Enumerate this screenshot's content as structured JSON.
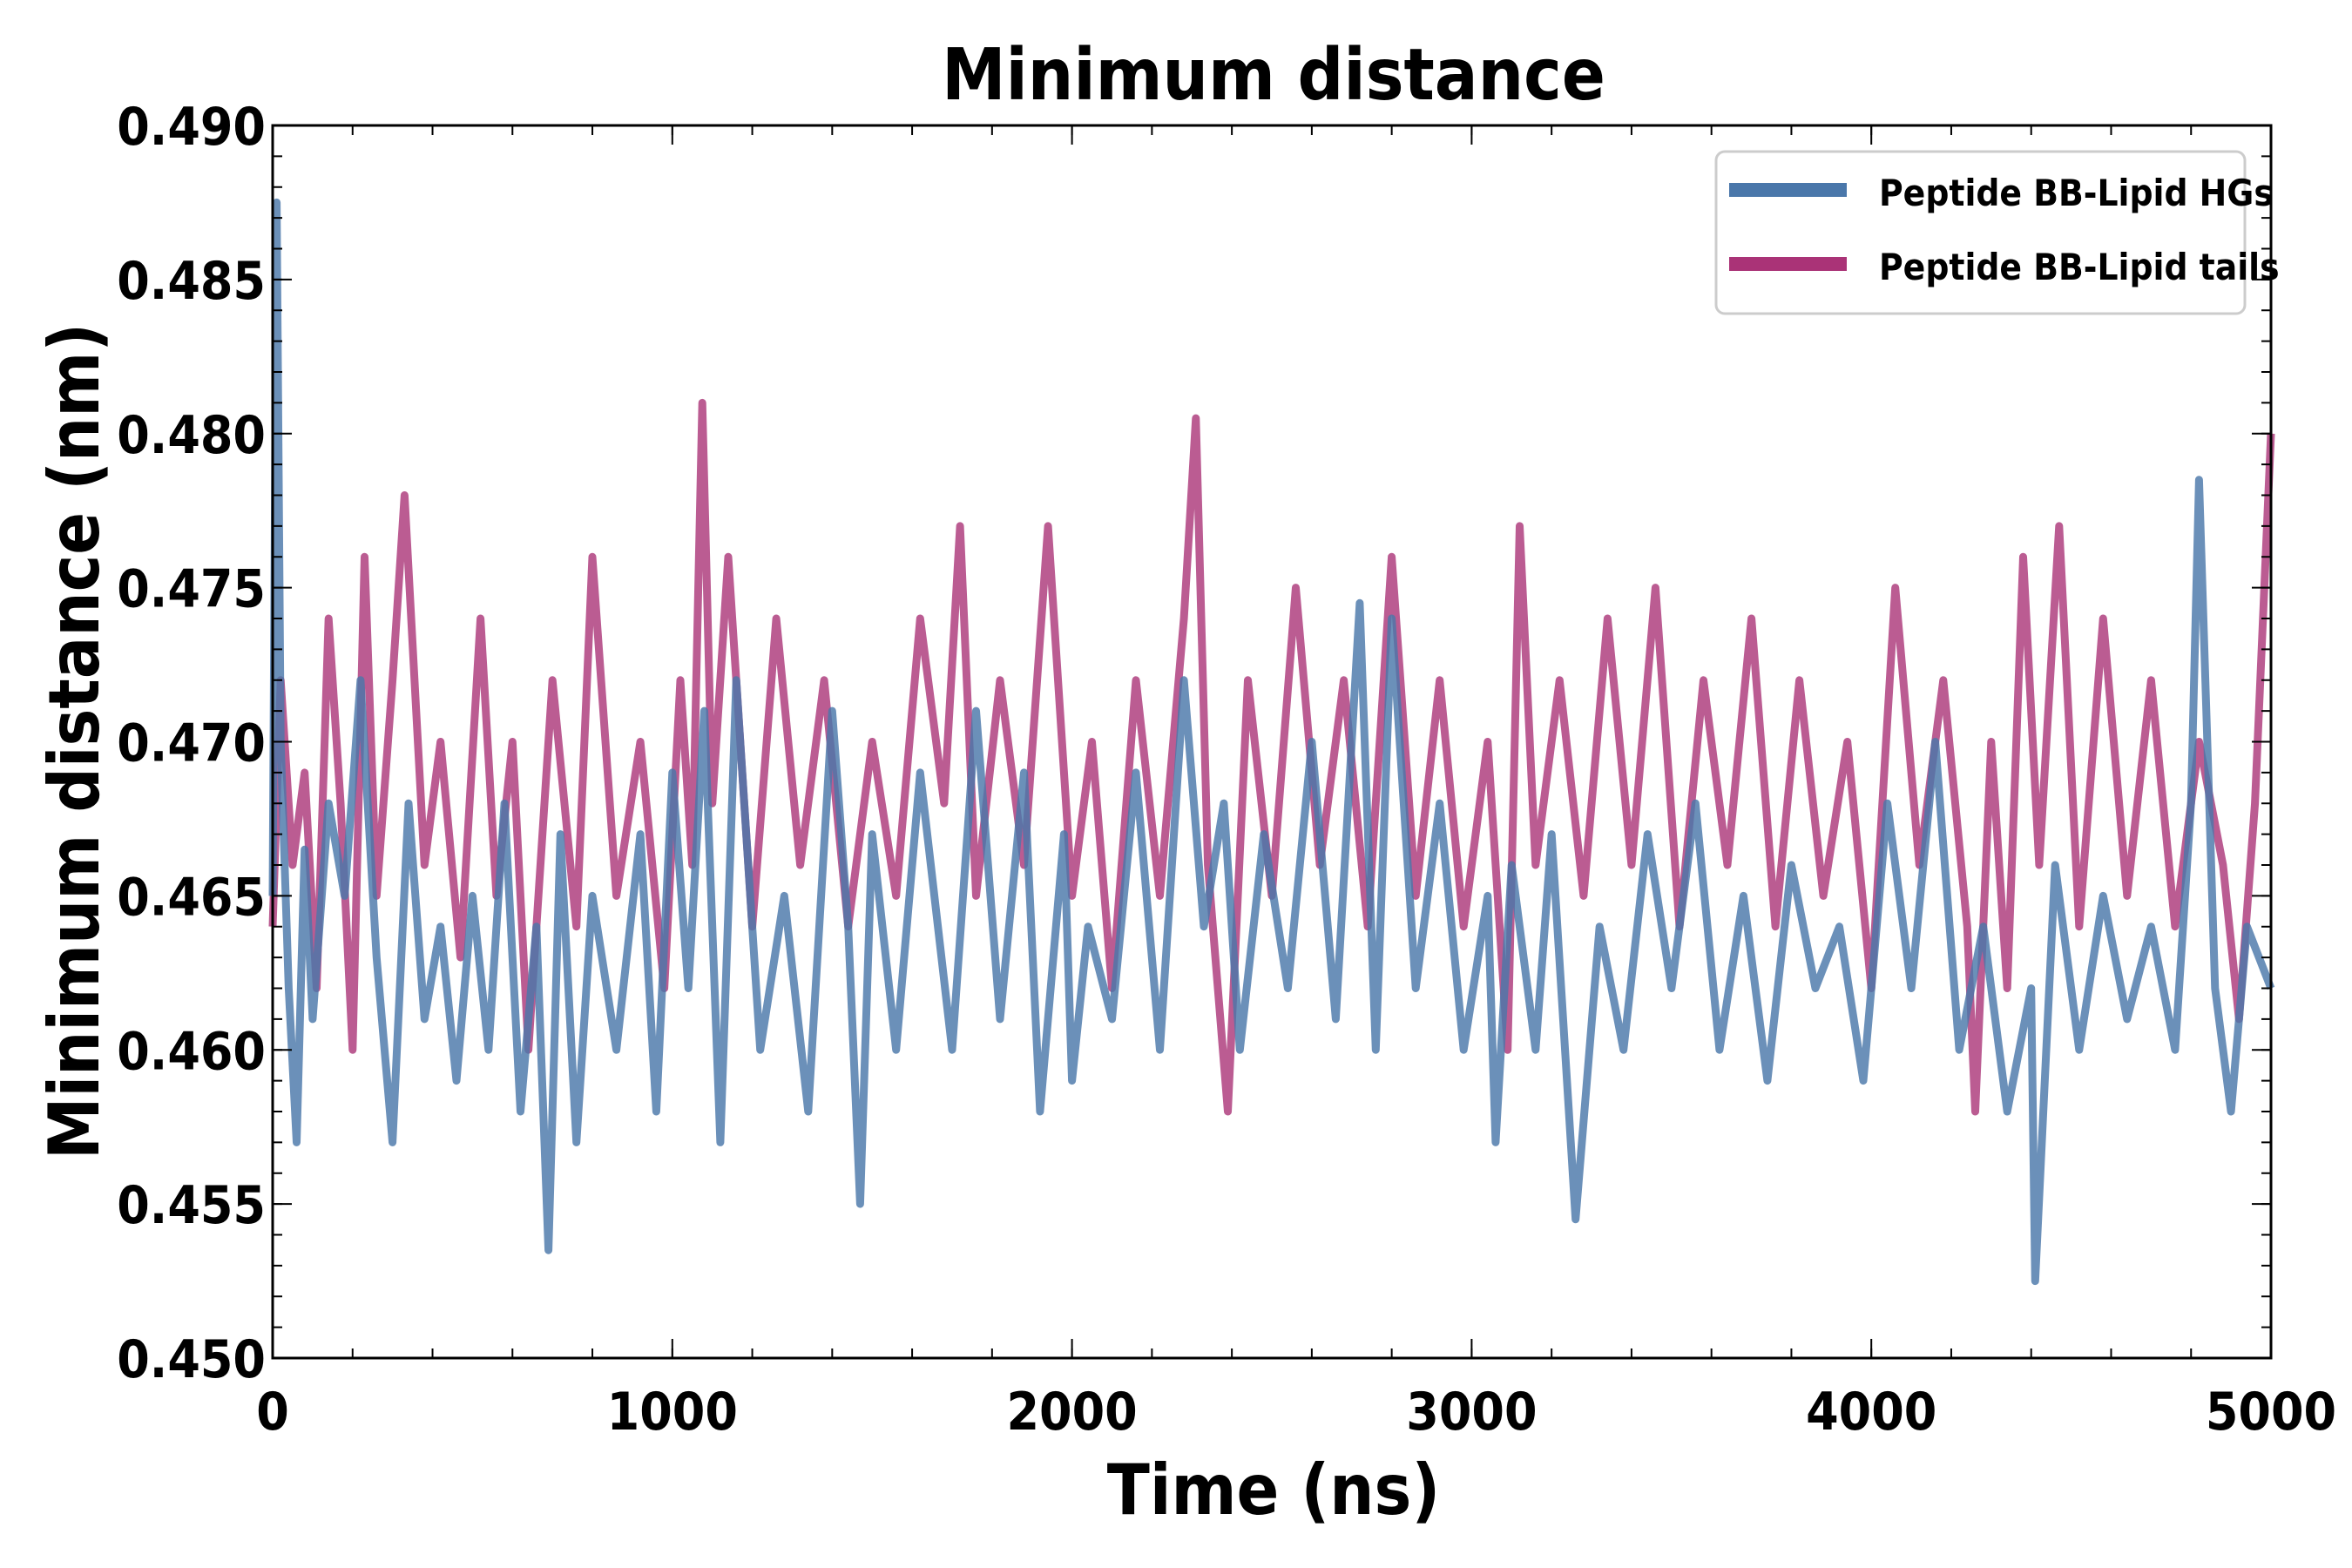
{
  "chart_data": {
    "type": "line",
    "title": "Minimum distance",
    "xlabel": "Time (ns)",
    "ylabel": "Minimum distance (nm)",
    "xlim": [
      0,
      5000
    ],
    "ylim": [
      0.45,
      0.49
    ],
    "xticks": [
      "0",
      "1000",
      "2000",
      "3000",
      "4000",
      "5000"
    ],
    "yticks": [
      "0.450",
      "0.455",
      "0.460",
      "0.465",
      "0.470",
      "0.475",
      "0.480",
      "0.485",
      "0.490"
    ],
    "grid": false,
    "legend_position": "top-right",
    "series": [
      {
        "name": "Peptide BB-Lipid HGs",
        "color": "#4a77aa",
        "style": "noisy fluctuation around 0.4637 nm, spike to 0.4875 nm at t=0",
        "x": [
          0,
          10,
          20,
          40,
          60,
          80,
          100,
          140,
          180,
          220,
          260,
          300,
          340,
          380,
          420,
          460,
          500,
          540,
          580,
          620,
          660,
          690,
          720,
          760,
          800,
          860,
          920,
          960,
          1000,
          1040,
          1080,
          1120,
          1160,
          1220,
          1280,
          1340,
          1400,
          1440,
          1470,
          1500,
          1560,
          1620,
          1700,
          1760,
          1820,
          1880,
          1920,
          1980,
          2000,
          2040,
          2100,
          2160,
          2220,
          2280,
          2330,
          2380,
          2420,
          2480,
          2540,
          2600,
          2660,
          2720,
          2760,
          2800,
          2860,
          2920,
          2980,
          3040,
          3060,
          3100,
          3160,
          3200,
          3260,
          3320,
          3380,
          3440,
          3500,
          3560,
          3620,
          3680,
          3740,
          3800,
          3860,
          3920,
          3980,
          4040,
          4100,
          4160,
          4220,
          4280,
          4340,
          4400,
          4410,
          4460,
          4520,
          4580,
          4640,
          4700,
          4760,
          4800,
          4820,
          4860,
          4900,
          4940,
          5000
        ],
        "values": [
          0.465,
          0.4875,
          0.47,
          0.462,
          0.457,
          0.4665,
          0.461,
          0.468,
          0.465,
          0.472,
          0.463,
          0.457,
          0.468,
          0.461,
          0.464,
          0.459,
          0.465,
          0.46,
          0.468,
          0.458,
          0.464,
          0.4535,
          0.467,
          0.457,
          0.465,
          0.46,
          0.467,
          0.458,
          0.469,
          0.462,
          0.471,
          0.457,
          0.472,
          0.46,
          0.465,
          0.458,
          0.471,
          0.464,
          0.455,
          0.467,
          0.46,
          0.469,
          0.46,
          0.471,
          0.461,
          0.469,
          0.458,
          0.467,
          0.459,
          0.464,
          0.461,
          0.469,
          0.46,
          0.472,
          0.464,
          0.468,
          0.46,
          0.467,
          0.462,
          0.47,
          0.461,
          0.4745,
          0.46,
          0.474,
          0.462,
          0.468,
          0.46,
          0.465,
          0.457,
          0.466,
          0.46,
          0.467,
          0.4545,
          0.464,
          0.46,
          0.467,
          0.462,
          0.468,
          0.46,
          0.465,
          0.459,
          0.466,
          0.462,
          0.464,
          0.459,
          0.468,
          0.462,
          0.47,
          0.46,
          0.464,
          0.458,
          0.462,
          0.4525,
          0.466,
          0.46,
          0.465,
          0.461,
          0.464,
          0.46,
          0.468,
          0.4785,
          0.462,
          0.458,
          0.464,
          0.462
        ]
      },
      {
        "name": "Peptide BB-Lipid tails",
        "color": "#aa3377",
        "style": "noisy fluctuation around 0.4680 nm",
        "x": [
          0,
          20,
          50,
          80,
          110,
          140,
          170,
          200,
          230,
          260,
          300,
          330,
          380,
          420,
          470,
          520,
          560,
          600,
          640,
          700,
          760,
          800,
          860,
          920,
          980,
          1020,
          1050,
          1075,
          1100,
          1140,
          1200,
          1260,
          1320,
          1380,
          1440,
          1500,
          1560,
          1620,
          1680,
          1720,
          1760,
          1820,
          1880,
          1940,
          2000,
          2050,
          2100,
          2160,
          2220,
          2280,
          2310,
          2340,
          2390,
          2440,
          2500,
          2560,
          2620,
          2680,
          2740,
          2800,
          2860,
          2920,
          2980,
          3040,
          3090,
          3120,
          3160,
          3220,
          3280,
          3340,
          3400,
          3460,
          3520,
          3580,
          3640,
          3700,
          3760,
          3820,
          3880,
          3940,
          4000,
          4060,
          4120,
          4180,
          4240,
          4260,
          4300,
          4340,
          4380,
          4420,
          4470,
          4520,
          4580,
          4640,
          4700,
          4760,
          4820,
          4880,
          4920,
          4960,
          5000
        ],
        "values": [
          0.464,
          0.472,
          0.466,
          0.469,
          0.462,
          0.474,
          0.468,
          0.46,
          0.476,
          0.465,
          0.472,
          0.478,
          0.466,
          0.47,
          0.463,
          0.474,
          0.465,
          0.47,
          0.46,
          0.472,
          0.464,
          0.476,
          0.465,
          0.47,
          0.462,
          0.472,
          0.466,
          0.481,
          0.468,
          0.476,
          0.464,
          0.474,
          0.466,
          0.472,
          0.464,
          0.47,
          0.465,
          0.474,
          0.468,
          0.477,
          0.465,
          0.472,
          0.466,
          0.477,
          0.465,
          0.47,
          0.462,
          0.472,
          0.465,
          0.474,
          0.4805,
          0.466,
          0.458,
          0.472,
          0.465,
          0.475,
          0.466,
          0.472,
          0.464,
          0.476,
          0.465,
          0.472,
          0.464,
          0.47,
          0.46,
          0.477,
          0.466,
          0.472,
          0.465,
          0.474,
          0.466,
          0.475,
          0.464,
          0.472,
          0.466,
          0.474,
          0.464,
          0.472,
          0.465,
          0.47,
          0.462,
          0.475,
          0.466,
          0.472,
          0.464,
          0.458,
          0.47,
          0.462,
          0.476,
          0.466,
          0.477,
          0.464,
          0.474,
          0.465,
          0.472,
          0.464,
          0.47,
          0.466,
          0.461,
          0.468,
          0.48
        ]
      }
    ]
  }
}
